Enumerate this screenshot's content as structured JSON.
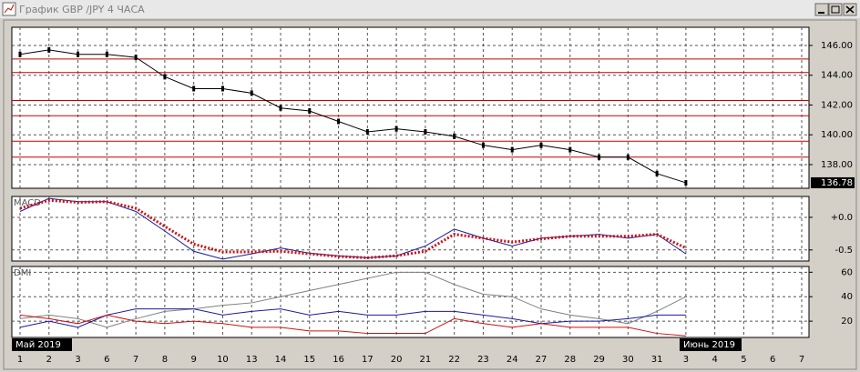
{
  "window": {
    "title": "График GBP /JPY  4 ЧАСА"
  },
  "categories": [
    "1",
    "2",
    "3",
    "6",
    "7",
    "8",
    "9",
    "10",
    "13",
    "14",
    "15",
    "16",
    "17",
    "20",
    "21",
    "22",
    "23",
    "24",
    "27",
    "28",
    "29",
    "30",
    "31",
    "3",
    "4",
    "5",
    "6",
    "7"
  ],
  "month_labels": [
    "Май 2019",
    "Июнь 2019"
  ],
  "chart_data": [
    {
      "type": "line",
      "ylim": [
        136.41,
        147.22
      ],
      "yticks": [
        {
          "value": 138,
          "label": "138.00"
        },
        {
          "value": 140,
          "label": "140.00"
        },
        {
          "value": 142,
          "label": "142.00"
        },
        {
          "value": 144,
          "label": "144.00"
        },
        {
          "value": 146,
          "label": "146.00"
        }
      ],
      "grid": true,
      "last_price": 136.78,
      "levels": [
        145.09,
        144.18,
        142.3,
        141.28,
        139.57,
        138.5
      ],
      "level_color": "#c00000",
      "series": [
        {
          "color": "#000000",
          "values": [
            145.4,
            145.7,
            145.4,
            145.4,
            145.2,
            143.9,
            143.1,
            143.1,
            142.8,
            141.8,
            141.6,
            140.9,
            140.2,
            140.4,
            140.2,
            139.9,
            139.3,
            139.0,
            139.3,
            139.0,
            138.5,
            138.5,
            137.4,
            136.78,
            null,
            null,
            null,
            null
          ]
        }
      ]
    },
    {
      "type": "line",
      "title": "MACD",
      "ylim": [
        -0.67,
        0.32
      ],
      "yticks": [
        {
          "value": 0,
          "label": "+0.0"
        },
        {
          "value": -0.5,
          "label": "-0.5"
        }
      ],
      "grid": true,
      "series": [
        {
          "color": "#1a1aa0",
          "dash": false,
          "values": [
            0.09,
            0.29,
            0.24,
            0.24,
            0.09,
            -0.21,
            -0.52,
            -0.64,
            -0.56,
            -0.47,
            -0.55,
            -0.59,
            -0.62,
            -0.59,
            -0.44,
            -0.18,
            -0.32,
            -0.44,
            -0.32,
            -0.29,
            -0.26,
            -0.32,
            -0.26,
            -0.56,
            null,
            null,
            null,
            null
          ]
        },
        {
          "color": "#cc1111",
          "dash": true,
          "values": [
            0.14,
            0.26,
            0.23,
            0.24,
            0.14,
            -0.14,
            -0.41,
            -0.53,
            -0.53,
            -0.52,
            -0.56,
            -0.6,
            -0.62,
            -0.59,
            -0.52,
            -0.26,
            -0.32,
            -0.38,
            -0.33,
            -0.29,
            -0.29,
            -0.29,
            -0.26,
            -0.47,
            null,
            null,
            null,
            null
          ]
        }
      ]
    },
    {
      "type": "line",
      "title": "DMI",
      "ylim": [
        6.7,
        64.7
      ],
      "yticks": [
        20,
        40,
        60
      ],
      "grid": true,
      "series": [
        {
          "color": "#808080",
          "dash": false,
          "values": [
            22,
            25,
            22,
            15,
            22,
            28,
            30,
            33,
            35,
            40,
            45,
            50,
            55,
            60,
            60,
            50,
            42,
            40,
            30,
            25,
            22,
            18,
            28,
            40,
            null,
            null,
            null,
            null
          ]
        },
        {
          "color": "#1a1aa0",
          "dash": false,
          "values": [
            15,
            20,
            15,
            25,
            30,
            30,
            30,
            25,
            28,
            30,
            25,
            28,
            25,
            25,
            28,
            28,
            25,
            22,
            18,
            20,
            20,
            22,
            25,
            25,
            null,
            null,
            null,
            null
          ]
        },
        {
          "color": "#cc1111",
          "dash": false,
          "values": [
            25,
            22,
            18,
            25,
            20,
            18,
            20,
            18,
            15,
            15,
            12,
            12,
            10,
            10,
            10,
            22,
            18,
            15,
            18,
            15,
            15,
            15,
            10,
            8,
            null,
            null,
            null,
            null
          ]
        }
      ]
    }
  ]
}
